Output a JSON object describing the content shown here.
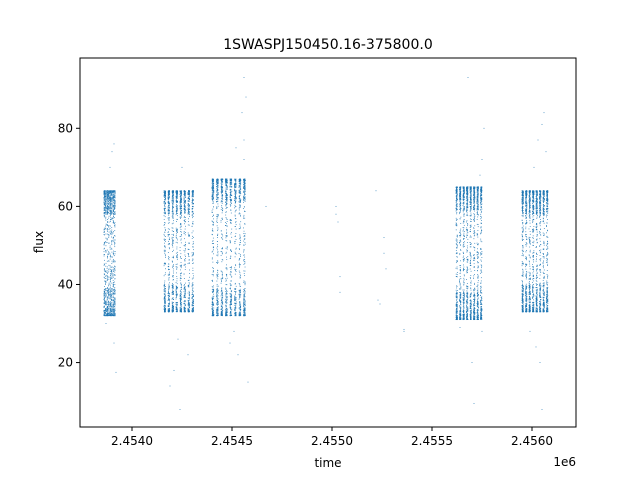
{
  "chart_data": {
    "type": "scatter",
    "title": "1SWASPJ150450.16-375800.0",
    "xlabel": "time",
    "ylabel": "flux",
    "x_offset_label": "1e6",
    "xlim": [
      2.45374,
      2.45622
    ],
    "ylim": [
      3.5,
      98
    ],
    "x_ticks": [
      2.454,
      2.4545,
      2.455,
      2.4555,
      2.456
    ],
    "x_tick_labels": [
      "2.4540",
      "2.4545",
      "2.4550",
      "2.4555",
      "2.4560"
    ],
    "y_ticks": [
      20,
      40,
      60,
      80
    ],
    "y_tick_labels": [
      "20",
      "40",
      "60",
      "80"
    ],
    "grid": false,
    "marker_color": "#1f77b4",
    "series": [
      {
        "observing_blocks": [
          {
            "x_start": 2.45386,
            "x_end": 2.45392,
            "y_low": 32,
            "y_high": 64,
            "n_points": 1400,
            "outliers": [
              [
                2.45391,
                76
              ],
              [
                2.4539,
                74
              ],
              [
                2.45389,
                70
              ],
              [
                2.45387,
                30
              ],
              [
                2.45391,
                25
              ],
              [
                2.45392,
                17.5
              ]
            ]
          },
          {
            "x_start": 2.45416,
            "x_end": 2.45432,
            "y_low": 33,
            "y_high": 64,
            "n_points": 1800,
            "outliers": [
              [
                2.45421,
                18
              ],
              [
                2.45419,
                14
              ],
              [
                2.45424,
                8
              ],
              [
                2.45425,
                70
              ],
              [
                2.45428,
                22
              ],
              [
                2.45423,
                26
              ]
            ]
          },
          {
            "x_start": 2.4544,
            "x_end": 2.45458,
            "y_low": 32,
            "y_high": 67,
            "n_points": 1900,
            "outliers": [
              [
                2.45456,
                93
              ],
              [
                2.45457,
                88
              ],
              [
                2.45455,
                84
              ],
              [
                2.45456,
                77
              ],
              [
                2.45452,
                75
              ],
              [
                2.45456,
                72
              ],
              [
                2.45453,
                22
              ],
              [
                2.45449,
                25
              ],
              [
                2.45458,
                15
              ],
              [
                2.45451,
                28
              ]
            ]
          },
          {
            "x_start": 2.45562,
            "x_end": 2.45576,
            "y_low": 31,
            "y_high": 65,
            "n_points": 2200,
            "outliers": [
              [
                2.45568,
                93
              ],
              [
                2.45576,
                80
              ],
              [
                2.45575,
                72
              ],
              [
                2.45574,
                68
              ],
              [
                2.4557,
                20
              ],
              [
                2.45571,
                9.5
              ],
              [
                2.45564,
                29
              ],
              [
                2.45575,
                28
              ]
            ]
          },
          {
            "x_start": 2.45595,
            "x_end": 2.45609,
            "y_low": 33,
            "y_high": 64,
            "n_points": 2200,
            "outliers": [
              [
                2.45606,
                84
              ],
              [
                2.45605,
                81
              ],
              [
                2.45603,
                77
              ],
              [
                2.45607,
                74
              ],
              [
                2.45601,
                70
              ],
              [
                2.45604,
                20
              ],
              [
                2.45602,
                24
              ],
              [
                2.45605,
                8
              ],
              [
                2.45599,
                28
              ]
            ]
          }
        ],
        "isolated_points": [
          [
            2.45467,
            60
          ],
          [
            2.45502,
            60
          ],
          [
            2.45502,
            58
          ],
          [
            2.45503,
            56
          ],
          [
            2.45504,
            42
          ],
          [
            2.45504,
            38
          ],
          [
            2.45522,
            64
          ],
          [
            2.45523,
            36
          ],
          [
            2.45524,
            35
          ],
          [
            2.45526,
            52
          ],
          [
            2.45526,
            48
          ],
          [
            2.45527,
            44
          ],
          [
            2.45536,
            28.5
          ],
          [
            2.45536,
            28
          ]
        ]
      }
    ]
  }
}
